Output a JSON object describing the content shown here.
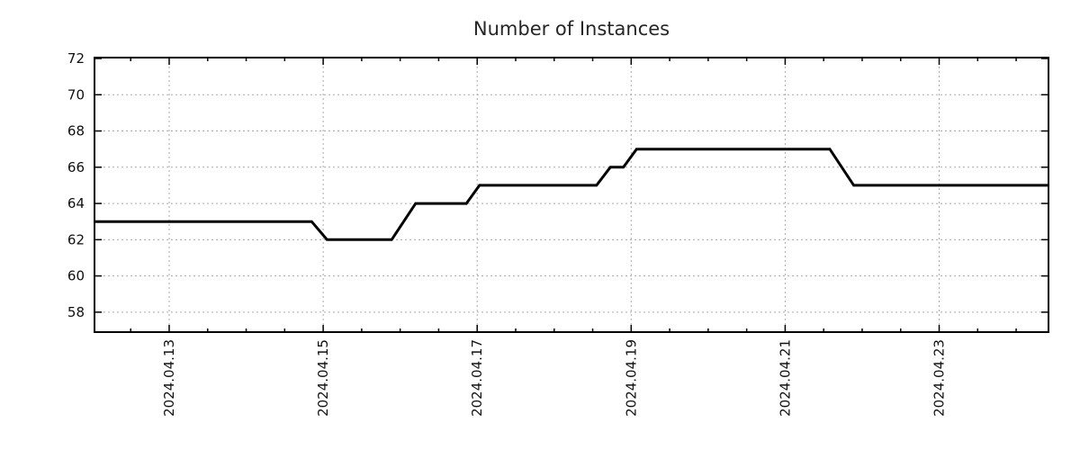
{
  "title": "Number of Instances",
  "colors": {
    "background": "#ffffff",
    "line": "#000000",
    "grid": "#aaaaaa",
    "axis_border": "#000000",
    "text": "#1a1a1a"
  },
  "chart_data": {
    "type": "line",
    "title": "Number of Instances",
    "xlabel": "",
    "ylabel": "",
    "legend": "none",
    "grid": true,
    "x_unit": "day of April 2024",
    "xlim_days": [
      12.03,
      24.42
    ],
    "ylim": [
      56.9,
      72.05
    ],
    "y_ticks": [
      58,
      60,
      62,
      64,
      66,
      68,
      70,
      72
    ],
    "x_major_tick_days": [
      13,
      15,
      17,
      19,
      21,
      23
    ],
    "x_tick_labels": [
      "2024.04.13",
      "2024.04.15",
      "2024.04.17",
      "2024.04.19",
      "2024.04.21",
      "2024.04.23"
    ],
    "x_minor_step_days": 0.5,
    "series": [
      {
        "name": "instances",
        "color": "#000000",
        "points_day_value": [
          [
            12.03,
            63
          ],
          [
            14.85,
            63
          ],
          [
            15.05,
            62
          ],
          [
            15.89,
            62
          ],
          [
            16.2,
            64
          ],
          [
            16.86,
            64
          ],
          [
            17.03,
            65
          ],
          [
            18.55,
            65
          ],
          [
            18.73,
            66
          ],
          [
            18.9,
            66
          ],
          [
            19.07,
            67
          ],
          [
            21.58,
            67
          ],
          [
            21.89,
            65
          ],
          [
            24.42,
            65
          ]
        ]
      }
    ]
  }
}
